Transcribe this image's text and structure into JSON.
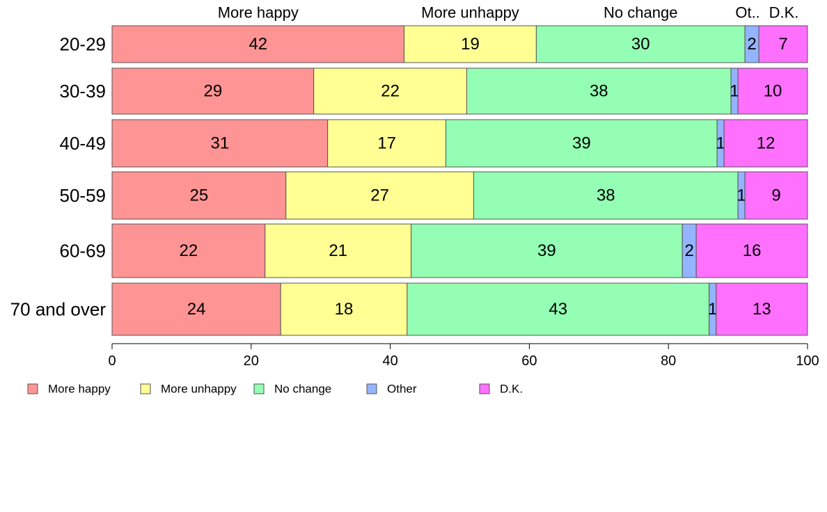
{
  "chart_data": {
    "type": "bar",
    "orientation": "horizontal",
    "stacked": true,
    "categories": [
      "20-29",
      "30-39",
      "40-49",
      "50-59",
      "60-69",
      "70 and over"
    ],
    "series": [
      {
        "name": "More happy",
        "color": "#ff9494",
        "values": [
          42,
          29,
          31,
          25,
          22,
          24
        ]
      },
      {
        "name": "More unhappy",
        "color": "#ffff94",
        "values": [
          19,
          22,
          17,
          27,
          21,
          18
        ]
      },
      {
        "name": "No change",
        "color": "#94ffb4",
        "values": [
          30,
          38,
          39,
          38,
          39,
          43
        ]
      },
      {
        "name": "Other",
        "color": "#94b4ff",
        "values": [
          2,
          1,
          1,
          1,
          2,
          1
        ]
      },
      {
        "name": "D.K.",
        "color": "#ff70ff",
        "values": [
          7,
          10,
          12,
          9,
          16,
          13
        ]
      }
    ],
    "top_labels": [
      "More happy",
      "More unhappy",
      "No change",
      "Ot..",
      "D.K."
    ],
    "value_labels": [
      [
        "42",
        "19",
        "30",
        "2",
        "7"
      ],
      [
        "29",
        "22",
        "38",
        "1",
        "10"
      ],
      [
        "31",
        "17",
        "39",
        "1",
        "12"
      ],
      [
        "25",
        "27",
        "38",
        "1",
        "9"
      ],
      [
        "22",
        "21",
        "39",
        "2",
        "16"
      ],
      [
        "24",
        "18",
        "43",
        "1",
        "13"
      ]
    ],
    "x_ticks": [
      "0",
      "20",
      "40",
      "60",
      "80",
      "100"
    ],
    "xlim": [
      0,
      100
    ],
    "grid": false,
    "legend_position": "bottom-left"
  }
}
